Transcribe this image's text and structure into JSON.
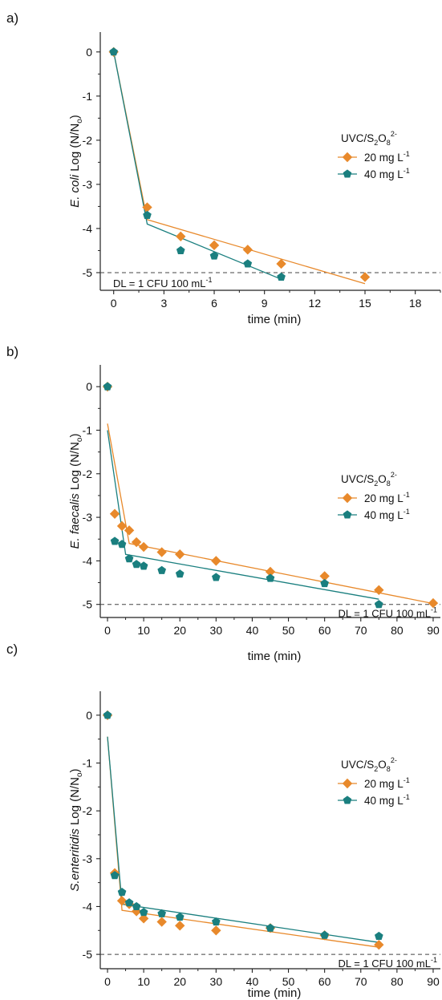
{
  "chart_data": [
    {
      "panel_label": "a)",
      "type": "scatter",
      "species": "E. coli",
      "ylabel_suffix": "Log (N/N",
      "ylabel_subscript": "o",
      "ylabel_close": ")",
      "xlabel": "time (min)",
      "xlim": [
        -0.8,
        19.5
      ],
      "ylim": [
        -5.4,
        0.45
      ],
      "xticks": [
        0,
        3,
        6,
        9,
        12,
        15,
        18
      ],
      "yticks": [
        0,
        -1,
        -2,
        -3,
        -4,
        -5
      ],
      "detection_limit": {
        "y": -5,
        "label": "DL = 1 CFU 100 mL",
        "label_sup": "-1"
      },
      "legend": {
        "title": "UVC/S",
        "title_sub1": "2",
        "title_mid": "O",
        "title_sub2": "8",
        "title_sup": "2-",
        "placement": "right-middle"
      },
      "series": [
        {
          "name": "20 mg L",
          "name_sup": "-1",
          "color": "#e8892b",
          "marker": "diamond",
          "x": [
            0,
            2,
            4,
            6,
            8,
            10,
            15
          ],
          "y": [
            0,
            -3.52,
            -4.18,
            -4.38,
            -4.48,
            -4.8,
            -5.1
          ],
          "fit": [
            [
              0,
              0
            ],
            [
              2,
              -3.8
            ],
            [
              15,
              -5.25
            ]
          ]
        },
        {
          "name": "40 mg L",
          "name_sup": "-1",
          "color": "#1a7f7f",
          "marker": "pentagon",
          "x": [
            0,
            2,
            4,
            6,
            8,
            10
          ],
          "y": [
            0,
            -3.7,
            -4.5,
            -4.62,
            -4.8,
            -5.1
          ],
          "fit": [
            [
              0,
              0
            ],
            [
              2,
              -3.9
            ],
            [
              10,
              -5.15
            ]
          ]
        }
      ]
    },
    {
      "panel_label": "b)",
      "type": "scatter",
      "species": "E. faecalis",
      "ylabel_suffix": "Log (N/N",
      "ylabel_subscript": "o",
      "ylabel_close": ")",
      "xlabel": "time (min)",
      "xlim": [
        -2,
        92
      ],
      "ylim": [
        -5.3,
        0.5
      ],
      "xticks": [
        0,
        10,
        20,
        30,
        40,
        50,
        60,
        70,
        80,
        90
      ],
      "yticks": [
        0,
        -1,
        -2,
        -3,
        -4,
        -5
      ],
      "detection_limit": {
        "y": -5,
        "label": "DL = 1 CFU 100 mL",
        "label_sup": "-1"
      },
      "legend": {
        "title": "UVC/S",
        "title_sub1": "2",
        "title_mid": "O",
        "title_sub2": "8",
        "title_sup": "2-",
        "placement": "right-middle"
      },
      "series": [
        {
          "name": "20 mg L",
          "name_sup": "-1",
          "color": "#e8892b",
          "marker": "diamond",
          "x": [
            0,
            2,
            4,
            6,
            8,
            10,
            15,
            20,
            30,
            45,
            60,
            75,
            90
          ],
          "y": [
            0,
            -2.92,
            -3.2,
            -3.3,
            -3.57,
            -3.68,
            -3.8,
            -3.85,
            -4.0,
            -4.25,
            -4.35,
            -4.67,
            -4.97
          ],
          "fit": [
            [
              0,
              -0.85
            ],
            [
              6,
              -3.6
            ],
            [
              90,
              -4.98
            ]
          ]
        },
        {
          "name": "40 mg L",
          "name_sup": "-1",
          "color": "#1a7f7f",
          "marker": "pentagon",
          "x": [
            0,
            2,
            4,
            6,
            8,
            10,
            15,
            20,
            30,
            45,
            60,
            75
          ],
          "y": [
            0,
            -3.55,
            -3.62,
            -3.95,
            -4.08,
            -4.12,
            -4.22,
            -4.3,
            -4.38,
            -4.4,
            -4.52,
            -5.0
          ],
          "fit": [
            [
              0,
              -1.0
            ],
            [
              5,
              -3.85
            ],
            [
              75,
              -4.88
            ]
          ]
        }
      ]
    },
    {
      "panel_label": "c)",
      "type": "scatter",
      "species": "S.enteritidis",
      "ylabel_suffix": "Log (N/N",
      "ylabel_subscript": "o",
      "ylabel_close": ")",
      "xlabel": "time (min)",
      "xlim": [
        -2,
        92
      ],
      "ylim": [
        -5.3,
        0.5
      ],
      "xticks": [
        0,
        10,
        20,
        30,
        40,
        50,
        60,
        70,
        80,
        90
      ],
      "yticks": [
        0,
        -1,
        -2,
        -3,
        -4,
        -5
      ],
      "detection_limit": {
        "y": -5,
        "label": "DL = 1 CFU 100 mL",
        "label_sup": "-1"
      },
      "legend": {
        "title": "UVC/S",
        "title_sub1": "2",
        "title_mid": "O",
        "title_sub2": "8",
        "title_sup": "2-",
        "placement": "right-middle"
      },
      "series": [
        {
          "name": "20 mg L",
          "name_sup": "-1",
          "color": "#e8892b",
          "marker": "diamond",
          "x": [
            0,
            2,
            4,
            6,
            8,
            10,
            15,
            20,
            30,
            45,
            60,
            75
          ],
          "y": [
            0,
            -3.3,
            -3.88,
            -3.95,
            -4.1,
            -4.25,
            -4.32,
            -4.4,
            -4.5,
            -4.45,
            -4.6,
            -4.8
          ],
          "fit": [
            [
              0,
              -0.45
            ],
            [
              4,
              -4.08
            ],
            [
              75,
              -4.85
            ]
          ]
        },
        {
          "name": "40 mg L",
          "name_sup": "-1",
          "color": "#1a7f7f",
          "marker": "pentagon",
          "x": [
            0,
            2,
            4,
            6,
            8,
            10,
            15,
            20,
            30,
            45,
            60,
            75
          ],
          "y": [
            0,
            -3.35,
            -3.7,
            -3.92,
            -4.0,
            -4.12,
            -4.15,
            -4.22,
            -4.32,
            -4.45,
            -4.6,
            -4.62
          ],
          "fit": [
            [
              0,
              -0.45
            ],
            [
              4,
              -3.95
            ],
            [
              75,
              -4.75
            ]
          ]
        }
      ]
    }
  ]
}
